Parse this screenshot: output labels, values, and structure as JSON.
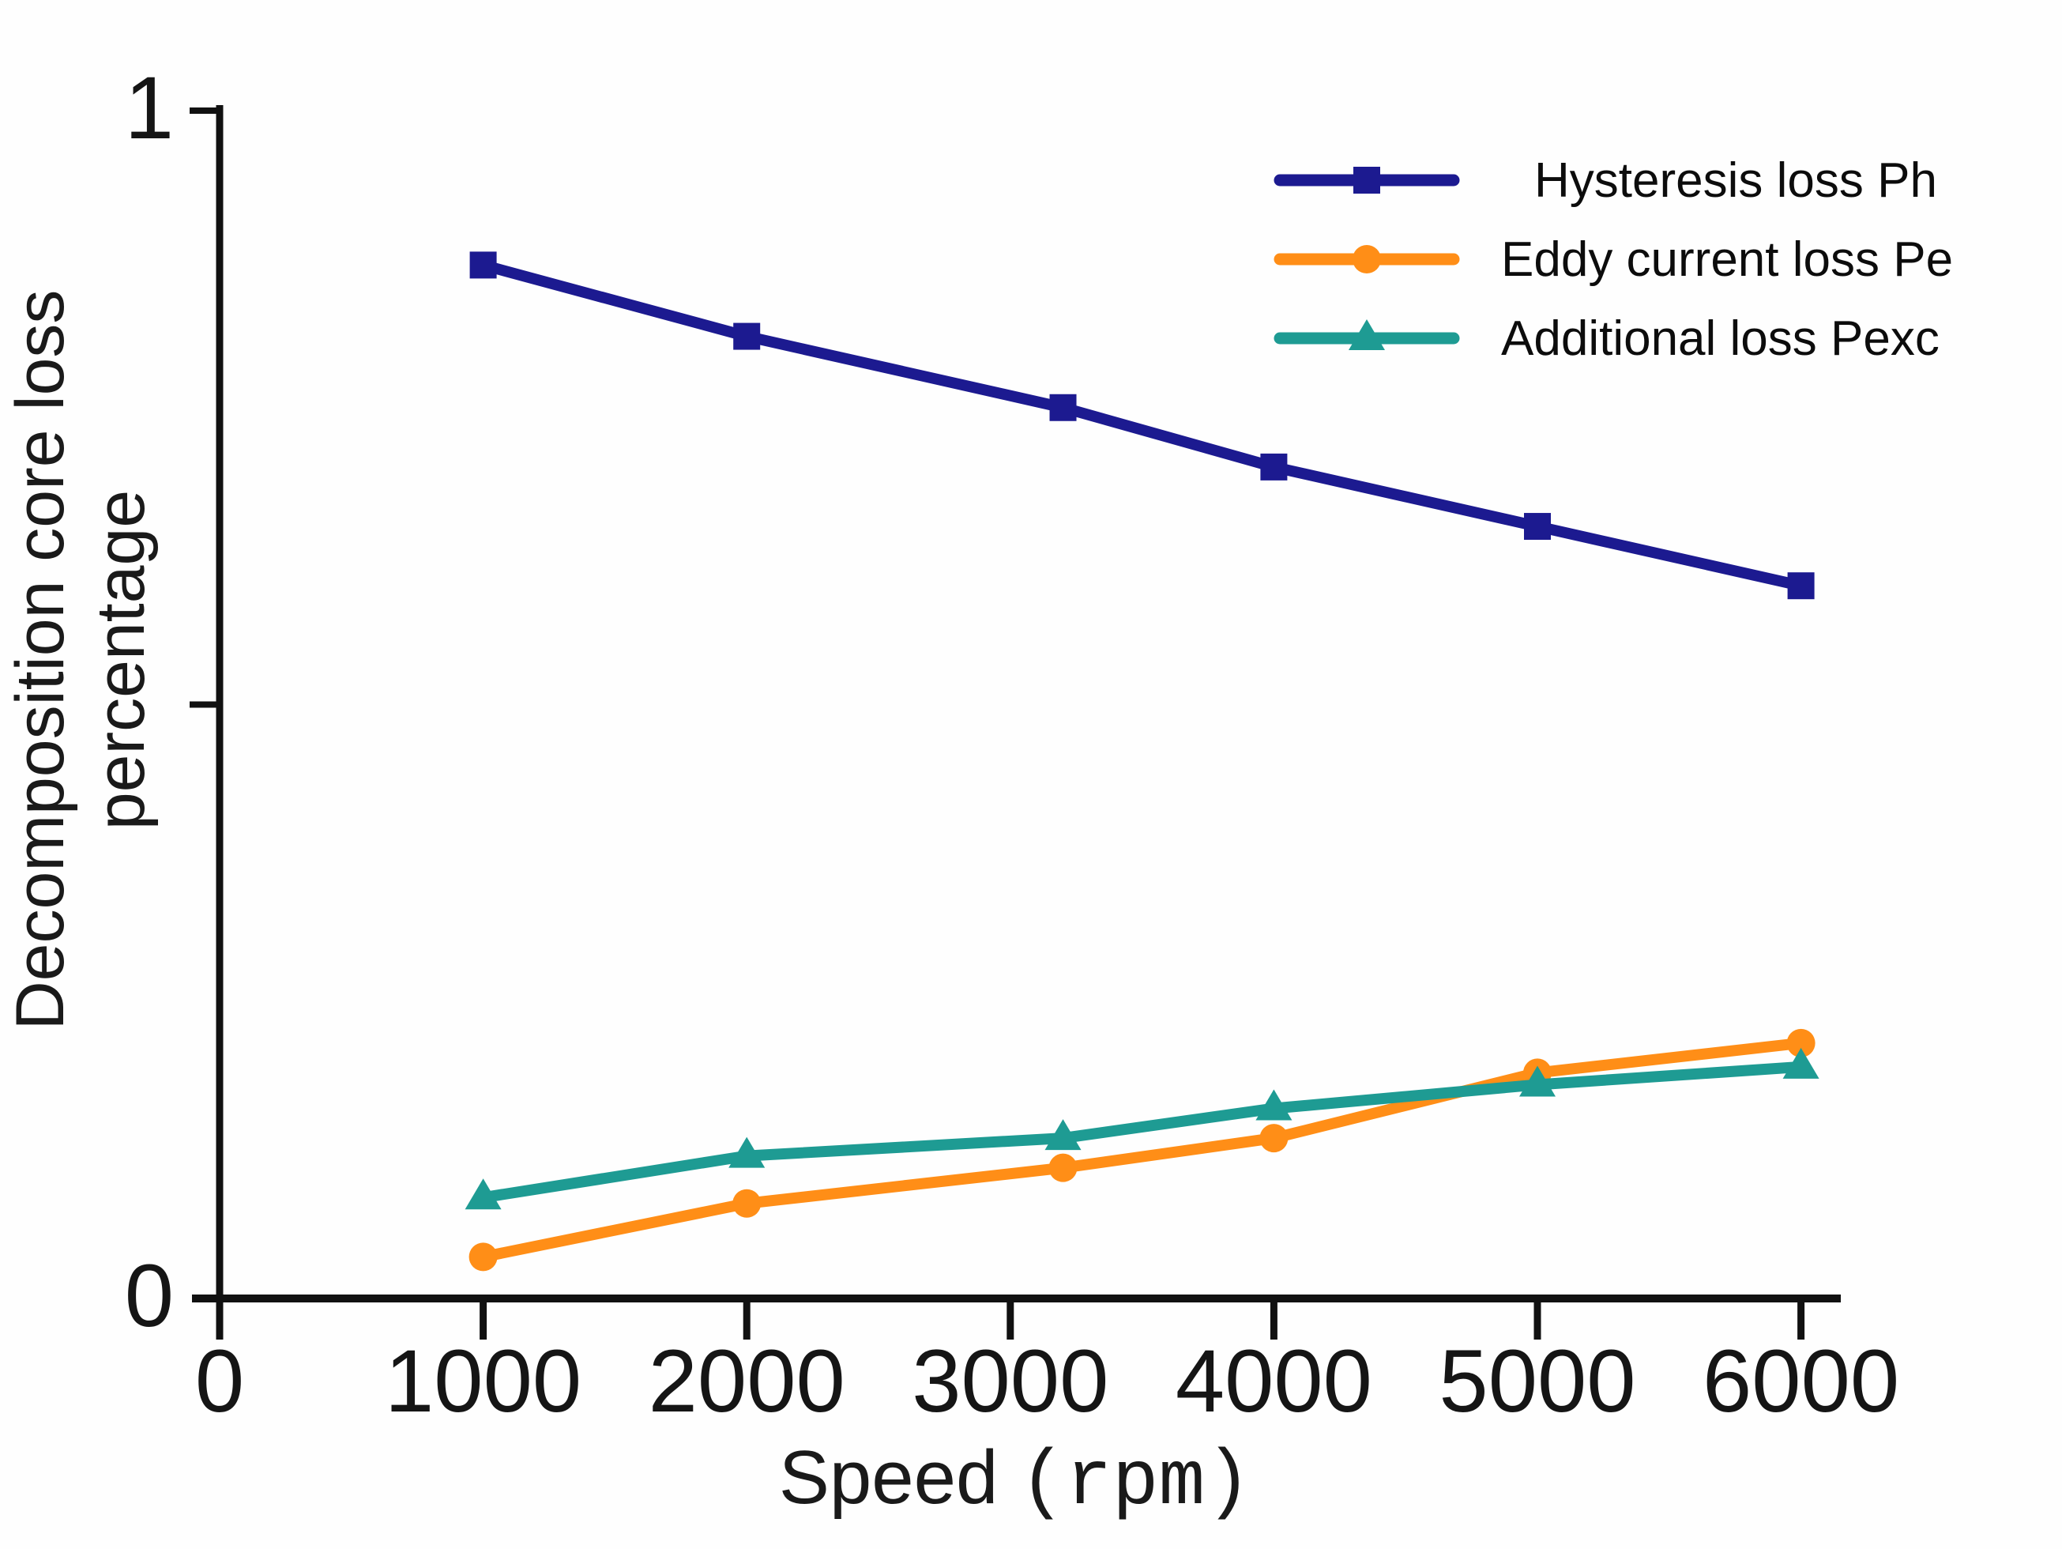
{
  "figure": {
    "background": "#fefefe",
    "axis_color": "#111111"
  },
  "axes": {
    "x": {
      "label_main": "Speed",
      "label_unit": "(rpm)",
      "ticks": [
        0,
        1000,
        2000,
        3000,
        4000,
        5000,
        6000
      ]
    },
    "y": {
      "label_line1": "Decomposition core loss",
      "label_line2": "percentage",
      "ticks": [
        {
          "value": 1,
          "label": "1"
        },
        {
          "value": 0.5,
          "label": ""
        },
        {
          "value": 0,
          "label": "0"
        }
      ]
    }
  },
  "chart_data": {
    "type": "line",
    "title": "",
    "xlabel": "Speed (rpm)",
    "ylabel": "Decomposition core loss percentage",
    "xlim": [
      0,
      6200
    ],
    "ylim": [
      0,
      1
    ],
    "grid": false,
    "legend_position": "upper right",
    "x": [
      1000,
      2000,
      3200,
      4000,
      5000,
      6000
    ],
    "series": [
      {
        "name": "Hysteresis loss Ph",
        "color": "#1c1a90",
        "marker": "square",
        "values": [
          0.87,
          0.81,
          0.75,
          0.7,
          0.65,
          0.6
        ]
      },
      {
        "name": "Eddy current loss Pe",
        "color": "#ff8e17",
        "marker": "circle",
        "values": [
          0.035,
          0.08,
          0.11,
          0.135,
          0.19,
          0.215
        ]
      },
      {
        "name": "Additional loss Pexc",
        "color": "#1e9b93",
        "marker": "triangle",
        "values": [
          0.085,
          0.12,
          0.135,
          0.16,
          0.18,
          0.195
        ]
      }
    ]
  }
}
